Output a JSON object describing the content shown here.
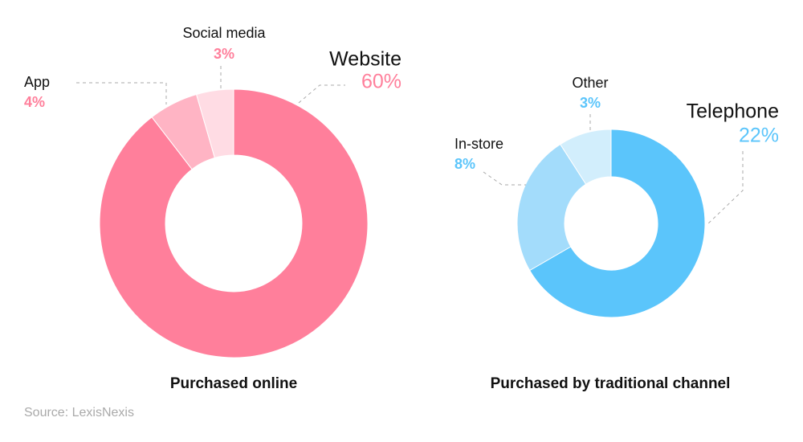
{
  "chart_data": [
    {
      "type": "pie",
      "title": "Purchased online",
      "categories": [
        "Website",
        "App",
        "Social media"
      ],
      "values": [
        60,
        4,
        3
      ],
      "value_labels": [
        "60%",
        "4%",
        "3%"
      ],
      "colors": [
        "#ff7f9b",
        "#ffb4c4",
        "#ffdce4"
      ],
      "label_color": "#ff7f9b"
    },
    {
      "type": "pie",
      "title": "Purchased by traditional channel",
      "categories": [
        "Telephone",
        "In-store",
        "Other"
      ],
      "values": [
        22,
        8,
        3
      ],
      "value_labels": [
        "22%",
        "8%",
        "3%"
      ],
      "colors": [
        "#5bc5fb",
        "#a3dcfb",
        "#d2eefc"
      ],
      "label_color": "#5bc5fb"
    }
  ],
  "source": "Source: LexisNexis"
}
